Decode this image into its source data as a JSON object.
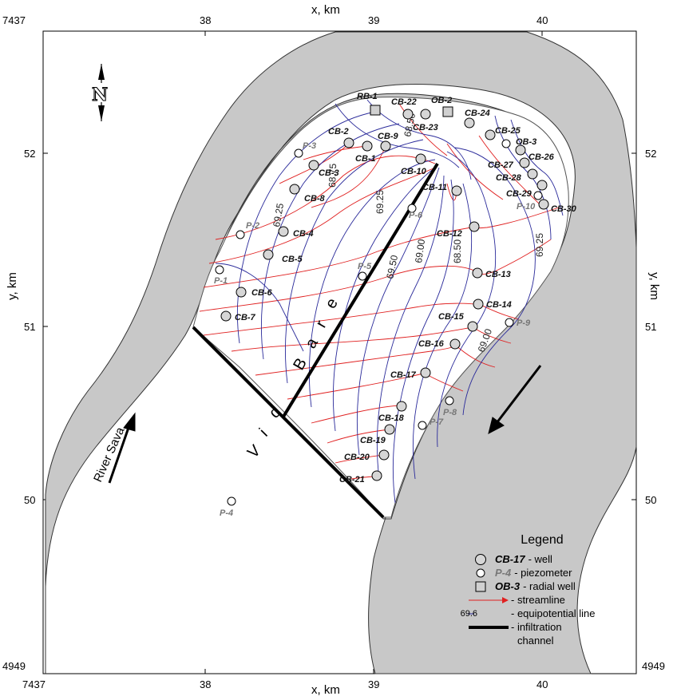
{
  "axes": {
    "x_label_top": "x, km",
    "x_label_bottom": "x, km",
    "y_label_left": "y, km",
    "y_label_right": "y, km",
    "x_ticks": [
      "38",
      "39",
      "40"
    ],
    "y_ticks": [
      "52",
      "51",
      "50"
    ],
    "corner_x": "7437",
    "corner_y": "4949"
  },
  "map": {
    "north_symbol": "N",
    "river_label": "River Sava",
    "channel_letters": [
      "V",
      "i",
      "d",
      "B",
      "a",
      "r",
      "e"
    ]
  },
  "wells": [
    {
      "label": "RB-1"
    },
    {
      "label": "CB-22"
    },
    {
      "label": "OB-2"
    },
    {
      "label": "CB-24"
    },
    {
      "label": "CB-23"
    },
    {
      "label": "CB-25"
    },
    {
      "label": "OB-3"
    },
    {
      "label": "CB-2"
    },
    {
      "label": "CB-9"
    },
    {
      "label": "CB-1"
    },
    {
      "label": "CB-26"
    },
    {
      "label": "CB-27"
    },
    {
      "label": "CB-28"
    },
    {
      "label": "CB-10"
    },
    {
      "label": "CB-3"
    },
    {
      "label": "CB-11"
    },
    {
      "label": "CB-29"
    },
    {
      "label": "CB-8"
    },
    {
      "label": "CB-30"
    },
    {
      "label": "CB-12"
    },
    {
      "label": "CB-4"
    },
    {
      "label": "CB-5"
    },
    {
      "label": "CB-13"
    },
    {
      "label": "CB-6"
    },
    {
      "label": "CB-14"
    },
    {
      "label": "CB-7"
    },
    {
      "label": "CB-15"
    },
    {
      "label": "CB-16"
    },
    {
      "label": "CB-17"
    },
    {
      "label": "CB-18"
    },
    {
      "label": "CB-19"
    },
    {
      "label": "CB-20"
    },
    {
      "label": "CB-21"
    }
  ],
  "piezometers": [
    {
      "label": "P-3"
    },
    {
      "label": "P-6"
    },
    {
      "label": "P-10"
    },
    {
      "label": "P-2"
    },
    {
      "label": "P-5"
    },
    {
      "label": "P-1"
    },
    {
      "label": "P-9"
    },
    {
      "label": "P-8"
    },
    {
      "label": "P-7"
    },
    {
      "label": "P-4"
    }
  ],
  "contour_labels": [
    "68.50",
    "68.75",
    "69.25",
    "69.25",
    "69.50",
    "69.00",
    "68.50",
    "69.25",
    "69.00"
  ],
  "legend": {
    "title": "Legend",
    "well_key": "CB-17",
    "well_text": "- well",
    "piezometer_key": "P-4",
    "piezometer_text": "- piezometer",
    "radial_key": "OB-3",
    "radial_text": "- radial well",
    "streamline_text": "- streamline",
    "equipotential_key": "69.6",
    "equipotential_text": "- equipotential line",
    "channel_text_1": "- infiltration",
    "channel_text_2": "channel"
  },
  "colors": {
    "river": "#c8c8c8",
    "streamline": "#e02020",
    "equipotential": "#2a2a9a",
    "channel": "#000000"
  }
}
